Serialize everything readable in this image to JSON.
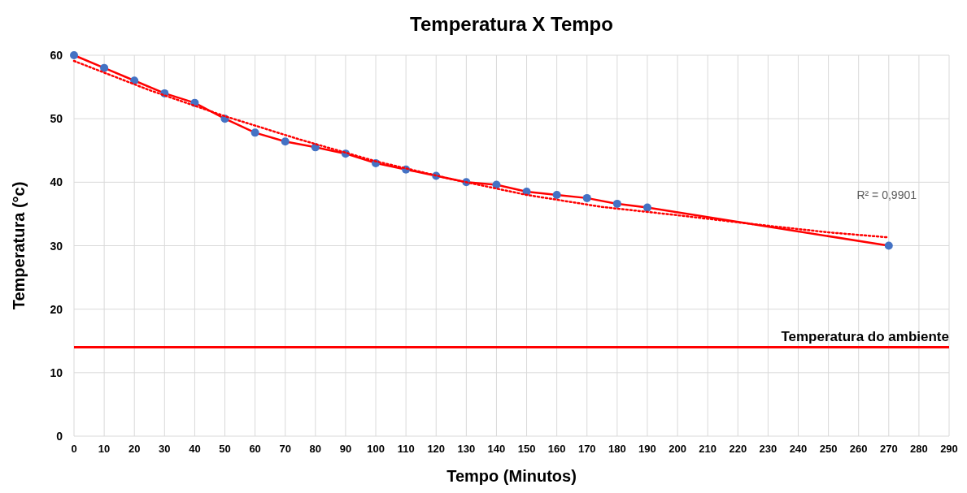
{
  "chart_data": {
    "type": "line",
    "title": "Temperatura X Tempo",
    "xlabel": "Tempo (Minutos)",
    "ylabel": "Temperatura (°c)",
    "x": [
      0,
      10,
      20,
      30,
      40,
      50,
      60,
      70,
      80,
      90,
      100,
      110,
      120,
      130,
      140,
      150,
      160,
      170,
      180,
      190,
      270
    ],
    "series": [
      {
        "color": "#ff0000",
        "line_style": "solid",
        "marker": "none",
        "values": [
          60,
          58,
          56,
          54,
          52.5,
          50,
          47.8,
          46.4,
          45.5,
          44.5,
          43,
          42,
          41,
          40,
          39.6,
          38.5,
          38,
          37.5,
          36.6,
          36,
          30
        ]
      },
      {
        "type": "scatter",
        "color": "#4472c4",
        "marker": "circle",
        "values": [
          60,
          58,
          56,
          54,
          52.5,
          50,
          47.8,
          46.4,
          45.5,
          44.5,
          43,
          42,
          41,
          40,
          39.6,
          38.5,
          38,
          37.5,
          36.6,
          36,
          30
        ]
      },
      {
        "color": "#ff0000",
        "line_style": "dotted",
        "marker": "none",
        "x": [
          0,
          25,
          50,
          75,
          100,
          125,
          150,
          175,
          200,
          225,
          250,
          270
        ],
        "values": [
          59.1,
          54.5,
          50.4,
          46.7,
          43.3,
          40.5,
          38,
          36.1,
          34.8,
          33.4,
          32.1,
          31.3
        ]
      }
    ],
    "xlim": [
      0,
      290
    ],
    "xticks": [
      0,
      10,
      20,
      30,
      40,
      50,
      60,
      70,
      80,
      90,
      100,
      110,
      120,
      130,
      140,
      150,
      160,
      170,
      180,
      190,
      200,
      210,
      220,
      230,
      240,
      250,
      260,
      270,
      280,
      290
    ],
    "ylim": [
      0,
      60
    ],
    "yticks": [
      0,
      10,
      20,
      30,
      40,
      50,
      60
    ],
    "grid": true,
    "ref_lines": [
      {
        "axis": "y",
        "value": 14,
        "label": "Temperatura do ambiente",
        "color": "#ff0000",
        "line_style": "solid"
      }
    ],
    "annotations": [
      "R² = 0,9901"
    ]
  }
}
